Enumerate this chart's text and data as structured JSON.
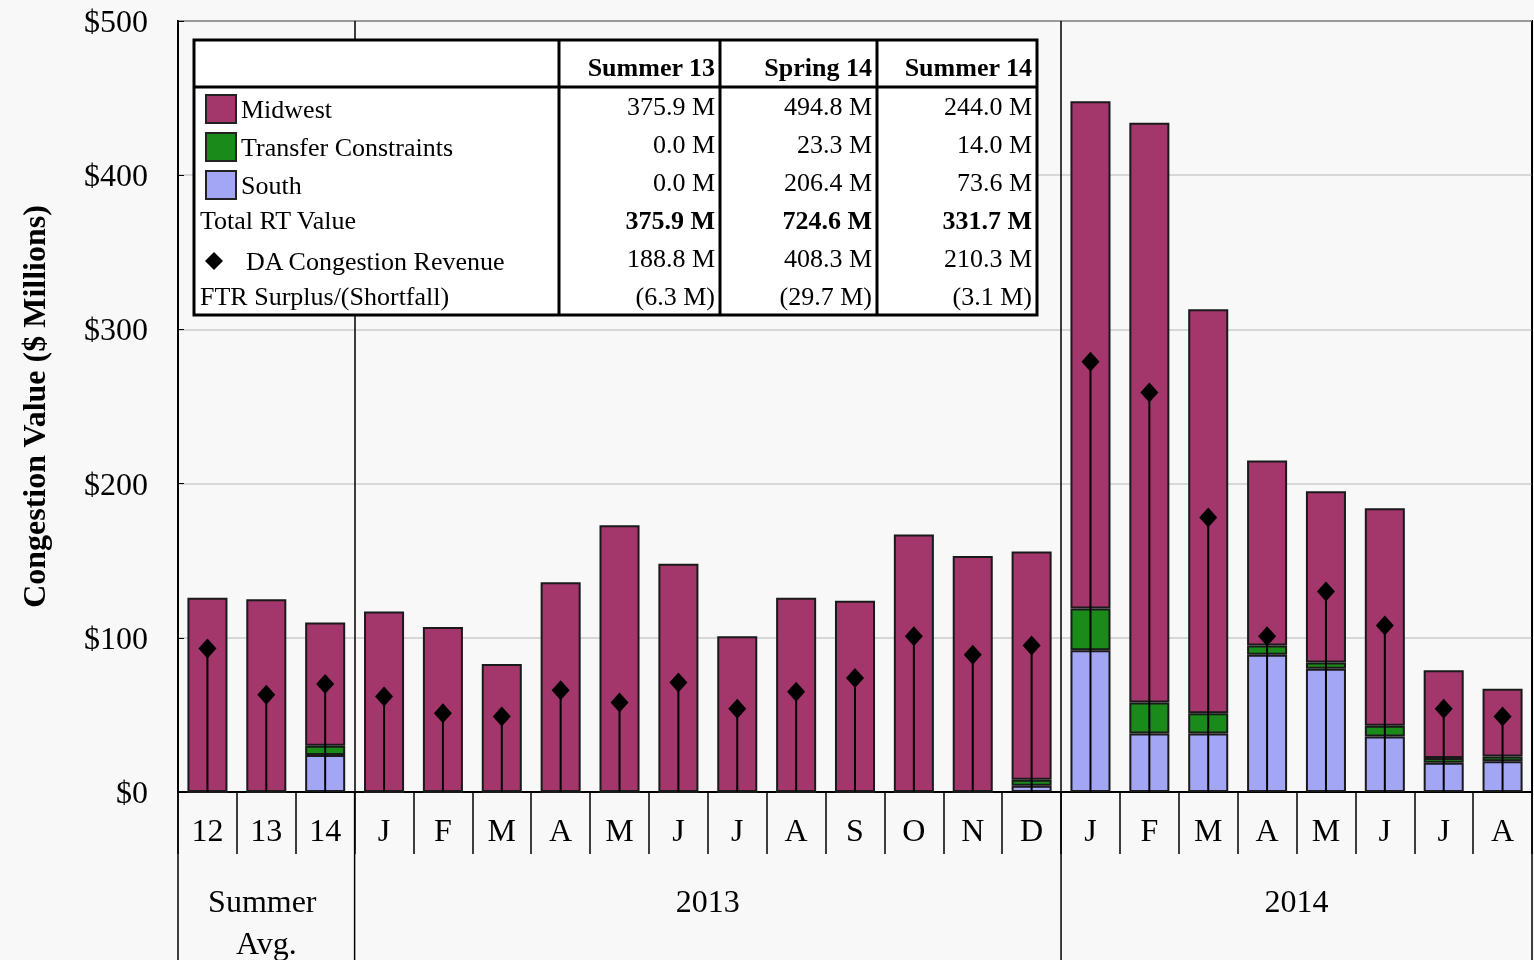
{
  "chart_data": {
    "type": "bar",
    "stacked": true,
    "ylabel": "Congestion Value ($ Millions)",
    "categories": [
      "12",
      "13",
      "14",
      "J",
      "F",
      "M",
      "A",
      "M",
      "J",
      "J",
      "A",
      "S",
      "O",
      "N",
      "D",
      "J",
      "F",
      "M",
      "A",
      "M",
      "J",
      "J",
      "A"
    ],
    "series": [
      {
        "name": "South",
        "color": "#a3a6f5",
        "values": [
          0,
          0,
          24,
          0,
          0,
          0,
          0,
          0,
          0,
          0,
          0,
          0,
          0,
          0,
          4,
          92,
          38,
          38,
          89,
          80,
          36,
          19,
          20
        ]
      },
      {
        "name": "Transfer Constraints",
        "color": "#1a8a1a",
        "values": [
          0,
          0,
          6,
          0,
          0,
          0,
          0,
          0,
          0,
          0,
          0,
          0,
          0,
          0,
          4,
          27,
          20,
          13,
          6,
          4,
          7,
          3,
          3
        ]
      },
      {
        "name": "Midwest",
        "color": "#a3366b",
        "values": [
          126,
          125,
          80,
          117,
          107,
          83,
          136,
          173,
          148,
          101,
          126,
          124,
          167,
          153,
          148,
          329,
          376,
          262,
          120,
          111,
          141,
          57,
          44
        ]
      },
      {
        "name": "DA Congestion Revenue",
        "type": "lollipop",
        "color": "#000000",
        "values": [
          93,
          63,
          70,
          62,
          51,
          49,
          66,
          58,
          71,
          54,
          65,
          74,
          101,
          89,
          95,
          279,
          259,
          178,
          101,
          130,
          108,
          54,
          49
        ]
      }
    ],
    "marker": "diamond",
    "ylim": [
      0,
      500
    ],
    "yticks": [
      {
        "value": 0,
        "label": "$0"
      },
      {
        "value": 100,
        "label": "$100"
      },
      {
        "value": 200,
        "label": "$200"
      },
      {
        "value": 300,
        "label": "$300"
      },
      {
        "value": 400,
        "label": "$400"
      },
      {
        "value": 500,
        "label": "$500"
      }
    ],
    "grid": "y",
    "legend": "top left",
    "annotations": [
      "Summer 13",
      "Spring 14",
      "Summer 14",
      "375.9 M",
      "494.8 M",
      "244.0 M",
      "0.0 M",
      "23.3 M",
      "14.0 M",
      "0.0 M",
      "206.4 M",
      "73.6 M",
      "Total RT Value",
      "375.9 M",
      "724.6 M",
      "331.7 M",
      "188.8 M",
      "408.3 M",
      "210.3 M",
      "FTR Surplus/(Shortfall)",
      "(6.3 M)",
      "(29.7 M)",
      "(3.1 M)",
      "Summer Avg.",
      "2013",
      "2014"
    ]
  }
}
